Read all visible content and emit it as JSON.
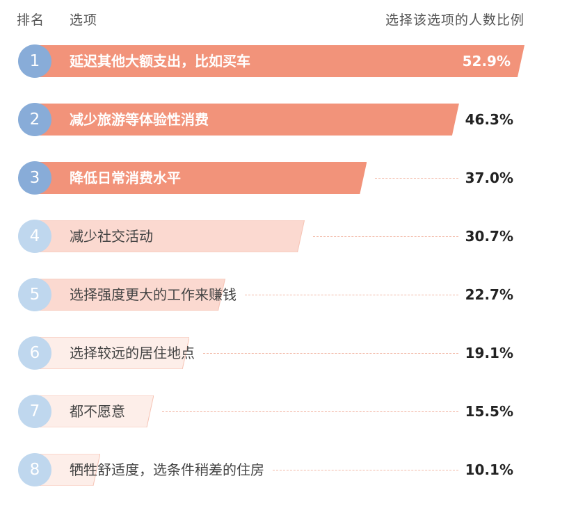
{
  "header": {
    "rank": "排名",
    "option": "选项",
    "share": "选择该选项的人数比例"
  },
  "chart_data": {
    "type": "bar",
    "orientation": "horizontal",
    "xlim": [
      0,
      52.9
    ],
    "colors": {
      "top_bar": "#f2937a",
      "top_circle": "#88acd8",
      "light_bar_strong": "#fbd9d0",
      "light_bar_weak": "#fdeee9",
      "light_circle": "#bfd7ee"
    },
    "rows": [
      {
        "rank": "1",
        "label": "延迟其他大额支出，比如买车",
        "value": 52.9,
        "value_label": "52.9%",
        "highlight": true
      },
      {
        "rank": "2",
        "label": "减少旅游等体验性消费",
        "value": 46.3,
        "value_label": "46.3%",
        "highlight": true
      },
      {
        "rank": "3",
        "label": "降低日常消费水平",
        "value": 37.0,
        "value_label": "37.0%",
        "highlight": true
      },
      {
        "rank": "4",
        "label": "减少社交活动",
        "value": 30.7,
        "value_label": "30.7%",
        "highlight": false
      },
      {
        "rank": "5",
        "label": "选择强度更大的工作来赚钱",
        "value": 22.7,
        "value_label": "22.7%",
        "highlight": false
      },
      {
        "rank": "6",
        "label": "选择较远的居住地点",
        "value": 19.1,
        "value_label": "19.1%",
        "highlight": false
      },
      {
        "rank": "7",
        "label": "都不愿意",
        "value": 15.5,
        "value_label": "15.5%",
        "highlight": false
      },
      {
        "rank": "8",
        "label": "牺牲舒适度，选条件稍差的住房",
        "value": 10.1,
        "value_label": "10.1%",
        "highlight": false
      }
    ]
  }
}
